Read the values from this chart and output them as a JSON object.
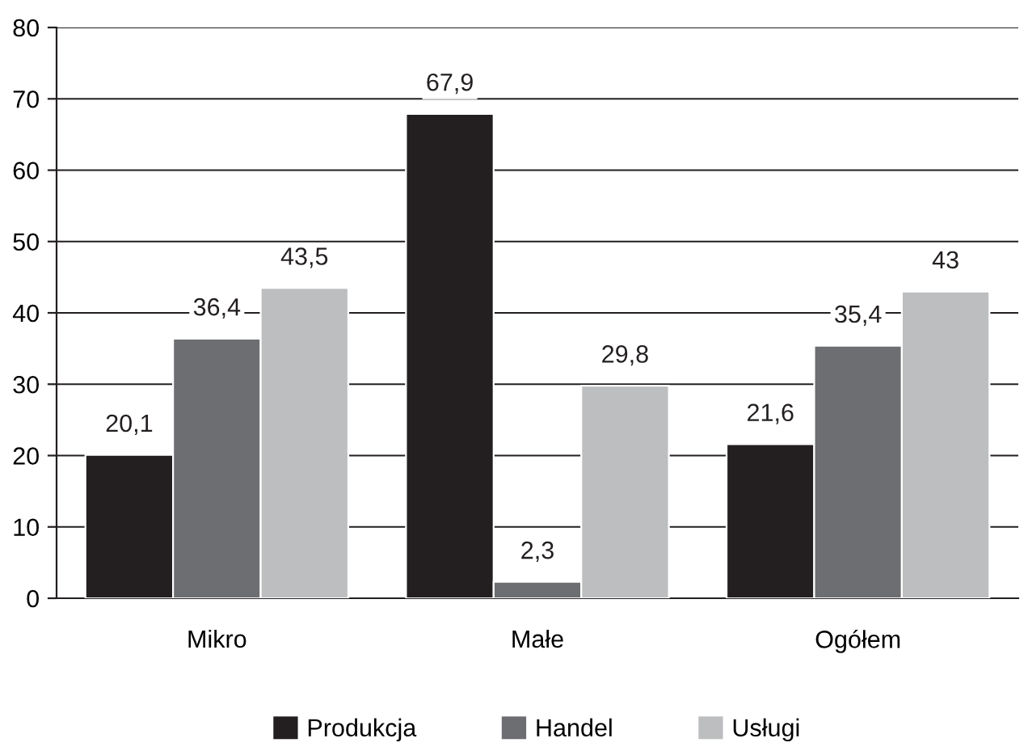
{
  "chart_data": {
    "type": "bar",
    "categories": [
      "Mikro",
      "Małe",
      "Ogółem"
    ],
    "series": [
      {
        "name": "Produkcja",
        "color": "#231f20",
        "values": [
          20.1,
          67.9,
          21.6
        ],
        "value_labels": [
          "20,1",
          "67,9",
          "21,6"
        ]
      },
      {
        "name": "Handel",
        "color": "#6d6e71",
        "values": [
          36.4,
          2.3,
          35.4
        ],
        "value_labels": [
          "36,4",
          "2,3",
          "35,4"
        ]
      },
      {
        "name": "Usługi",
        "color": "#bcbec0",
        "values": [
          43.5,
          29.8,
          43
        ],
        "value_labels": [
          "43,5",
          "29,8",
          "43"
        ]
      }
    ],
    "ylim": [
      0,
      80
    ],
    "yticks": [
      0,
      10,
      20,
      30,
      40,
      50,
      60,
      70,
      80
    ],
    "grid": "y",
    "legend": "bottom"
  }
}
